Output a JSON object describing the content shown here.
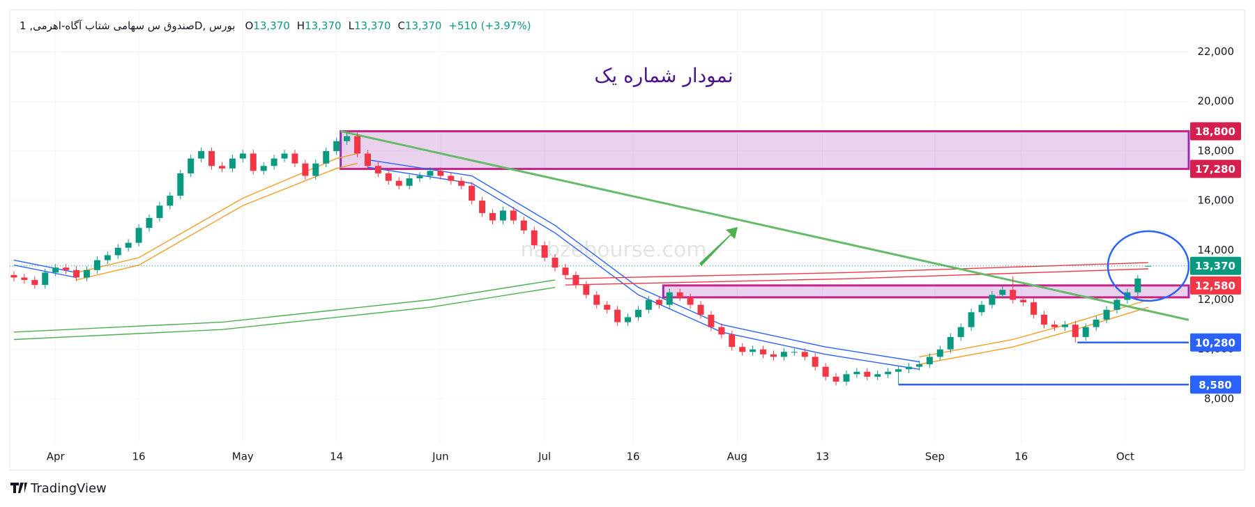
{
  "chart_data": {
    "type": "candlestick",
    "symbol": "صندوق س سهامی شتاب آگاه-اهرمی, 1D, بورس",
    "ohlc": [
      {
        "key": "O",
        "value": 13370,
        "label": "13,370"
      },
      {
        "key": "H",
        "value": 13370,
        "label": "13,370"
      },
      {
        "key": "L",
        "value": 13370,
        "label": "13,370"
      },
      {
        "key": "C",
        "value": 13370,
        "label": "13,370"
      }
    ],
    "change": {
      "value": 510,
      "label": "+510",
      "percent": 3.97,
      "percent_label": "(+3.97%)"
    },
    "title": "نمودار شماره یک",
    "watermark": "nabzebourse.com",
    "brand": "TradingView",
    "up_color": "#089981",
    "down_color": "#f23645",
    "grid": true,
    "xlim": [
      -0.4,
      112.9
    ],
    "ylim": [
      6200,
      23700
    ],
    "yticks": [
      {
        "value": 8000,
        "label": "8,000"
      },
      {
        "value": 10000,
        "label": "10,000"
      },
      {
        "value": 12000,
        "label": "12,000"
      },
      {
        "value": 14000,
        "label": "14,000"
      },
      {
        "value": 16000,
        "label": "16,000"
      },
      {
        "value": 18000,
        "label": "18,000"
      },
      {
        "value": 20000,
        "label": "20,000"
      },
      {
        "value": 22000,
        "label": "22,000"
      }
    ],
    "xticks": [
      {
        "value": 4,
        "label": "Apr"
      },
      {
        "value": 12,
        "label": "16"
      },
      {
        "value": 22,
        "label": "May"
      },
      {
        "value": 31,
        "label": "14"
      },
      {
        "value": 41,
        "label": "Jun"
      },
      {
        "value": 51,
        "label": "Jul"
      },
      {
        "value": 59.5,
        "label": "16"
      },
      {
        "value": 69.5,
        "label": "Aug"
      },
      {
        "value": 77.7,
        "label": "13"
      },
      {
        "value": 88.5,
        "label": "Sep"
      },
      {
        "value": 96.8,
        "label": "16"
      },
      {
        "value": 106.8,
        "label": "Oct"
      }
    ],
    "open": [
      13000,
      12900,
      12800,
      12600,
      13100,
      13300,
      13200,
      12900,
      13200,
      13600,
      13800,
      14100,
      14300,
      14900,
      15300,
      15800,
      16200,
      17100,
      17700,
      18000,
      17400,
      17300,
      17700,
      17900,
      17200,
      17400,
      17700,
      17900,
      17500,
      17000,
      17500,
      18000,
      18400,
      18600,
      17900,
      17400,
      17100,
      16800,
      16600,
      16900,
      17000,
      17200,
      17000,
      16800,
      16600,
      16000,
      15500,
      15200,
      15600,
      15200,
      14800,
      14200,
      13700,
      13300,
      13000,
      12600,
      12200,
      11800,
      11600,
      11100,
      11300,
      11600,
      12000,
      11800,
      12300,
      12100,
      11800,
      11400,
      10900,
      10600,
      10100,
      9900,
      10000,
      9800,
      9700,
      9900,
      9900,
      9700,
      9300,
      8900,
      8700,
      9000,
      9100,
      8900,
      9000,
      9100,
      9200,
      9300,
      9400,
      9700,
      10000,
      10500,
      10900,
      11500,
      11800,
      12200,
      12400,
      12000,
      11900,
      11400,
      11000,
      10900,
      11000,
      10500,
      10900,
      11200,
      11600,
      12000,
      12300,
      13370
    ],
    "high": [
      13150,
      13050,
      12950,
      13250,
      13450,
      13450,
      13350,
      13350,
      13750,
      13950,
      14250,
      14450,
      15050,
      15450,
      15950,
      16350,
      17250,
      17850,
      18150,
      18150,
      17550,
      17850,
      18050,
      18050,
      17550,
      17850,
      18050,
      18050,
      17650,
      17650,
      18150,
      18550,
      18750,
      18750,
      18050,
      17550,
      17250,
      16950,
      17050,
      17150,
      17350,
      17350,
      17150,
      16950,
      16750,
      16150,
      15650,
      15750,
      15750,
      15350,
      14950,
      14350,
      13850,
      13450,
      13150,
      12750,
      12350,
      11950,
      11750,
      11450,
      11750,
      12150,
      12150,
      12450,
      12450,
      12250,
      11950,
      11550,
      11050,
      10750,
      10250,
      10150,
      10150,
      9950,
      10050,
      10050,
      10050,
      9850,
      9450,
      9050,
      9150,
      9250,
      9250,
      9150,
      9250,
      9350,
      9450,
      9550,
      9850,
      10150,
      10650,
      11050,
      11650,
      11950,
      12350,
      12550,
      12950,
      12150,
      12050,
      11550,
      11150,
      11150,
      11150,
      11050,
      11350,
      11750,
      12150,
      12450,
      13010,
      13370
    ],
    "low": [
      12750,
      12650,
      12450,
      12450,
      12950,
      13050,
      12750,
      12750,
      13050,
      13450,
      13650,
      13950,
      14150,
      14750,
      15150,
      15650,
      16050,
      16950,
      17550,
      17250,
      17150,
      17150,
      17550,
      17050,
      17050,
      17250,
      17550,
      17350,
      16850,
      16850,
      17350,
      17850,
      18250,
      17750,
      17250,
      16950,
      16650,
      16450,
      16450,
      16750,
      16850,
      16850,
      16650,
      16450,
      15850,
      15350,
      15050,
      15050,
      15050,
      14650,
      14050,
      13550,
      13150,
      12850,
      12450,
      12050,
      11650,
      11450,
      10950,
      10950,
      11150,
      11450,
      11650,
      11650,
      11950,
      11650,
      11250,
      10750,
      10450,
      9950,
      9750,
      9750,
      9650,
      9550,
      9550,
      9750,
      9550,
      9150,
      8750,
      8550,
      8550,
      8850,
      8750,
      8750,
      8850,
      8580,
      9050,
      9150,
      9250,
      9550,
      9850,
      10350,
      10750,
      11350,
      11650,
      12050,
      11850,
      11750,
      11250,
      10850,
      10750,
      10750,
      10280,
      10350,
      10750,
      11050,
      11450,
      11850,
      12150,
      13370
    ],
    "close": [
      12900,
      12800,
      12600,
      13100,
      13300,
      13200,
      12900,
      13200,
      13600,
      13800,
      14100,
      14300,
      14900,
      15300,
      15800,
      16200,
      17100,
      17700,
      18000,
      17400,
      17300,
      17700,
      17900,
      17200,
      17400,
      17700,
      17900,
      17500,
      17000,
      17500,
      18000,
      18400,
      18600,
      17900,
      17400,
      17100,
      16800,
      16600,
      16900,
      17000,
      17200,
      17000,
      16800,
      16600,
      16000,
      15500,
      15200,
      15600,
      15200,
      14800,
      14200,
      13700,
      13300,
      13000,
      12600,
      12200,
      11800,
      11600,
      11100,
      11300,
      11600,
      12000,
      11800,
      12300,
      12100,
      11800,
      11400,
      10900,
      10600,
      10100,
      9900,
      10000,
      9800,
      9700,
      9900,
      9900,
      9700,
      9300,
      8900,
      8700,
      9000,
      9100,
      8900,
      9000,
      9100,
      9200,
      9300,
      9400,
      9700,
      10000,
      10500,
      10900,
      11500,
      11800,
      12200,
      12400,
      12000,
      11900,
      11400,
      11000,
      10900,
      11000,
      10500,
      10900,
      11200,
      11600,
      12000,
      12300,
      12860,
      13370
    ],
    "lines": [
      {
        "color": "#f59d23",
        "x": [
          6,
          12,
          22,
          31,
          33
        ],
        "values": [
          13100,
          13700,
          16100,
          17700,
          17900
        ]
      },
      {
        "color": "#f59d23",
        "x": [
          6,
          12,
          22,
          31,
          33
        ],
        "values": [
          12800,
          13400,
          15800,
          17300,
          17500
        ]
      },
      {
        "color": "#f59d23",
        "x": [
          87,
          96,
          102,
          109
        ],
        "values": [
          9700,
          10400,
          11100,
          12000
        ]
      },
      {
        "color": "#f59d23",
        "x": [
          87,
          96,
          102,
          109
        ],
        "values": [
          9400,
          10100,
          10800,
          11700
        ]
      },
      {
        "color": "#2962ff",
        "x": [
          0,
          6
        ],
        "values": [
          13600,
          13100
        ]
      },
      {
        "color": "#2962ff",
        "x": [
          0,
          6
        ],
        "values": [
          13400,
          12900
        ]
      },
      {
        "color": "#2962ff",
        "x": [
          34,
          44,
          52,
          60,
          68,
          78,
          87
        ],
        "values": [
          17650,
          17000,
          15000,
          12500,
          11000,
          10100,
          9500
        ]
      },
      {
        "color": "#2962ff",
        "x": [
          34,
          44,
          52,
          60,
          68,
          78,
          87
        ],
        "values": [
          17350,
          16700,
          14700,
          12200,
          10700,
          9800,
          9200
        ]
      },
      {
        "color": "#4caf50",
        "x": [
          0,
          20,
          40,
          52
        ],
        "values": [
          10700,
          11100,
          12000,
          12800
        ]
      },
      {
        "color": "#4caf50",
        "x": [
          0,
          20,
          40,
          52
        ],
        "values": [
          10400,
          10800,
          11700,
          12500
        ]
      },
      {
        "color": "#f23645",
        "x": [
          53,
          80,
          109
        ],
        "values": [
          12850,
          13100,
          13500
        ]
      },
      {
        "color": "#f23645",
        "x": [
          53,
          80,
          109
        ],
        "values": [
          12600,
          12850,
          13250
        ]
      }
    ],
    "zones": [
      {
        "x": 31.4,
        "low": 17280,
        "high": 18800
      },
      {
        "x": 62.4,
        "low": 12100,
        "high": 12580
      }
    ],
    "levels": [
      {
        "x": 102.2,
        "value": 10280
      },
      {
        "x": 85,
        "value": 8580
      }
    ],
    "trendline": {
      "x": [
        31.4,
        112.9
      ],
      "values": [
        18800,
        11190
      ]
    },
    "price_labels": [
      {
        "value": 18800,
        "label": "18,800",
        "color": "#d5204f"
      },
      {
        "value": 17280,
        "label": "17,280",
        "color": "#d5204f"
      },
      {
        "value": 13370,
        "label": "13,370",
        "color": "#089981"
      },
      {
        "value": 12580,
        "label": "12,580",
        "color": "#f23645"
      },
      {
        "value": 10280,
        "label": "10,280",
        "color": "#2962ff"
      },
      {
        "value": 8580,
        "label": "8,580",
        "color": "#2962ff"
      }
    ]
  }
}
